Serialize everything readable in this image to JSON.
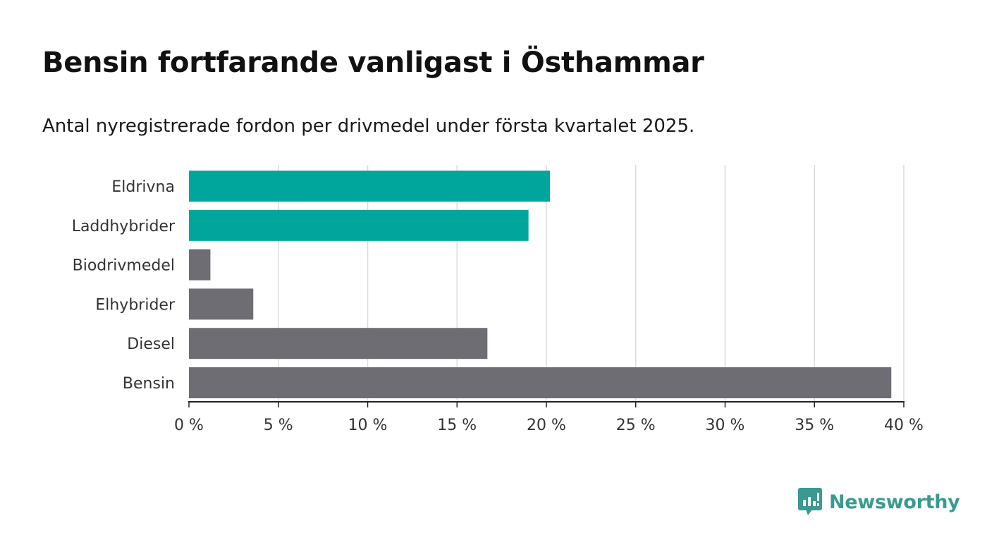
{
  "title": "Bensin fortfarande vanligast i Östhammar",
  "subtitle": "Antal nyregistrerade fordon per drivmedel under första kvartalet 2025.",
  "brand": {
    "name": "Newsworthy",
    "icon": "newsworthy-logo-icon",
    "color": "#3a9a8f"
  },
  "colors": {
    "highlight": "#00a69c",
    "default": "#6e6d73",
    "grid": "#dcdcdc",
    "axis": "#222222"
  },
  "chart_data": {
    "type": "bar",
    "orientation": "horizontal",
    "categories": [
      "Eldrivna",
      "Laddhybrider",
      "Biodrivmedel",
      "Elhybrider",
      "Diesel",
      "Bensin"
    ],
    "values": [
      20.2,
      19.0,
      1.2,
      3.6,
      16.7,
      39.3
    ],
    "highlighted": [
      true,
      true,
      false,
      false,
      false,
      false
    ],
    "xlim": [
      0,
      40
    ],
    "xticks": [
      0,
      5,
      10,
      15,
      20,
      25,
      30,
      35,
      40
    ],
    "xtick_labels": [
      "0 %",
      "5 %",
      "10 %",
      "15 %",
      "20 %",
      "25 %",
      "30 %",
      "35 %",
      "40 %"
    ],
    "grid": true,
    "legend": "none"
  }
}
